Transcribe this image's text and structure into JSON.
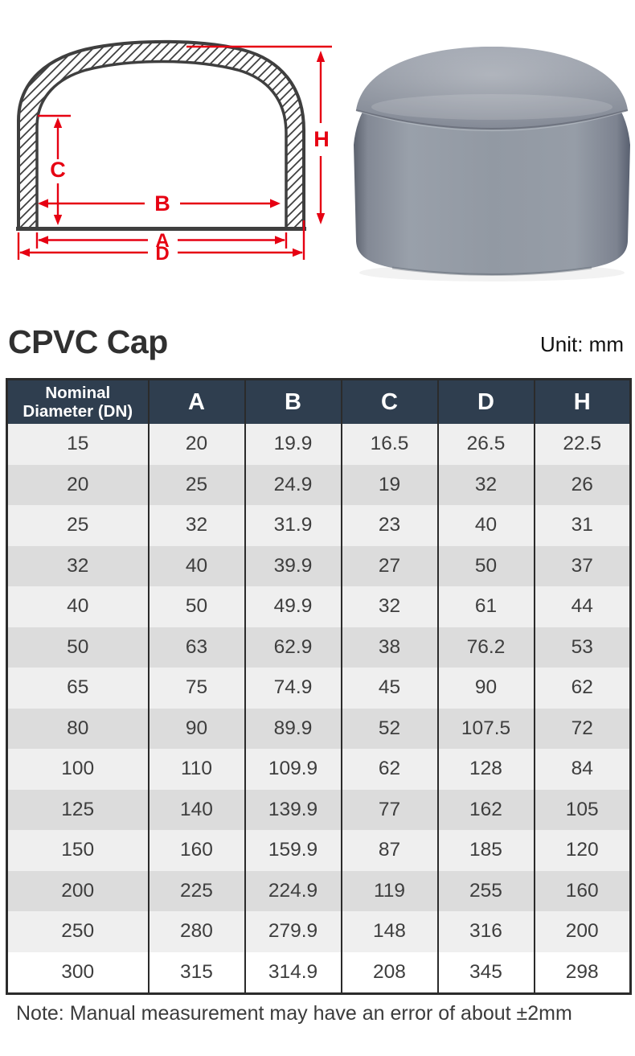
{
  "page_title": "CPVC Cap",
  "unit_label": "Unit: mm",
  "note": "Note: Manual measurement may have an error of about ±2mm",
  "diagram": {
    "subject": "cross-section drawing of pipe cap with dimension arrows",
    "dimension_labels": {
      "A": "A",
      "B": "B",
      "C": "C",
      "D": "D",
      "H": "H"
    },
    "outline_color": "#3f3f3f",
    "dimension_color": "#e60012"
  },
  "photo": {
    "subject": "grey CPVC pipe end cap product photo",
    "body_color": "#9299a3",
    "edge_color": "#5c626e"
  },
  "table": {
    "header_bg": "#2f3e4f",
    "header_text_color": "#ffffff",
    "border_color": "#2b2b2b",
    "row_color_odd": "#efefef",
    "row_color_even": "#dcdcdc",
    "row_color_last": "#ffffff",
    "columns": [
      "Nominal Diameter (DN)",
      "A",
      "B",
      "C",
      "D",
      "H"
    ],
    "rows": [
      [
        "15",
        "20",
        "19.9",
        "16.5",
        "26.5",
        "22.5"
      ],
      [
        "20",
        "25",
        "24.9",
        "19",
        "32",
        "26"
      ],
      [
        "25",
        "32",
        "31.9",
        "23",
        "40",
        "31"
      ],
      [
        "32",
        "40",
        "39.9",
        "27",
        "50",
        "37"
      ],
      [
        "40",
        "50",
        "49.9",
        "32",
        "61",
        "44"
      ],
      [
        "50",
        "63",
        "62.9",
        "38",
        "76.2",
        "53"
      ],
      [
        "65",
        "75",
        "74.9",
        "45",
        "90",
        "62"
      ],
      [
        "80",
        "90",
        "89.9",
        "52",
        "107.5",
        "72"
      ],
      [
        "100",
        "110",
        "109.9",
        "62",
        "128",
        "84"
      ],
      [
        "125",
        "140",
        "139.9",
        "77",
        "162",
        "105"
      ],
      [
        "150",
        "160",
        "159.9",
        "87",
        "185",
        "120"
      ],
      [
        "200",
        "225",
        "224.9",
        "119",
        "255",
        "160"
      ],
      [
        "250",
        "280",
        "279.9",
        "148",
        "316",
        "200"
      ],
      [
        "300",
        "315",
        "314.9",
        "208",
        "345",
        "298"
      ]
    ]
  }
}
